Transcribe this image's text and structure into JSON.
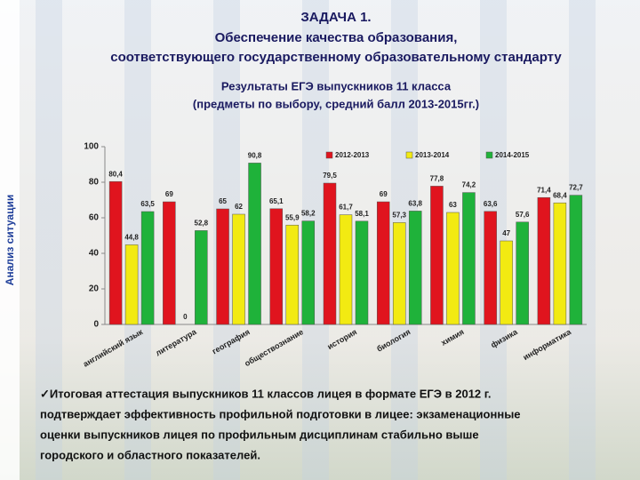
{
  "header": {
    "title_lines": [
      "ЗАДАЧА 1.",
      "Обеспечение качества образования,",
      "соответствующего государственному образовательному стандарту"
    ]
  },
  "side_label": "Анализ ситуации",
  "chart_data": {
    "type": "bar",
    "subtitle_lines": [
      "Результаты ЕГЭ выпускников 11 класса",
      "(предметы по выбору, средний балл 2013-2015гг.)"
    ],
    "categories": [
      "английский язык",
      "литература",
      "география",
      "обществознание",
      "история",
      "биология",
      "химия",
      "физика",
      "информатика"
    ],
    "series": [
      {
        "name": "2012-2013",
        "color": "#e0141e",
        "values": [
          80.4,
          69,
          65,
          65.1,
          79.5,
          69,
          77.8,
          63.6,
          71.4
        ],
        "value_labels": [
          "80,4",
          "69",
          "65",
          "65,1",
          "79,5",
          "69",
          "77,8",
          "63,6",
          "71,4"
        ]
      },
      {
        "name": "2013-2014",
        "color": "#f2ea12",
        "values": [
          44.8,
          0,
          62,
          55.9,
          61.7,
          57.3,
          63,
          47,
          68.4
        ],
        "value_labels": [
          "44,8",
          "0",
          "62",
          "55,9",
          "61,7",
          "57,3",
          "63",
          "47",
          "68,4"
        ]
      },
      {
        "name": "2014-2015",
        "color": "#1fb23a",
        "values": [
          63.5,
          52.8,
          90.8,
          58.2,
          58.1,
          63.8,
          74.2,
          57.6,
          72.7
        ],
        "value_labels": [
          "63,5",
          "52,8",
          "90,8",
          "58,2",
          "58,1",
          "63,8",
          "74,2",
          "57,6",
          "72,7"
        ]
      }
    ],
    "ylim": [
      0,
      100
    ],
    "yticks": [
      0,
      20,
      40,
      60,
      80,
      100
    ],
    "legend": "top-right"
  },
  "body_text": [
    "✓Итоговая аттестация выпускников 11 классов лицея в формате ЕГЭ в 2012 г.",
    "подтверждает эффективность профильной подготовки в лицее: экзаменационные",
    "оценки выпускников лицея по профильным дисциплинам стабильно выше",
    "городского и областного показателей."
  ]
}
